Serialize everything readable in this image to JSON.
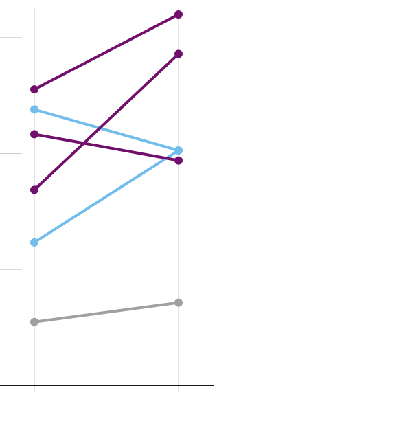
{
  "chart_data": {
    "type": "line",
    "chart_style": "slope",
    "categories": [
      "",
      ""
    ],
    "ylim": [
      0,
      5.7
    ],
    "y_gridlines": [
      1.5,
      3,
      4.5
    ],
    "grid": true,
    "legend": "none",
    "series": [
      {
        "color": "#720e6b",
        "values": [
          3.83,
          4.8
        ]
      },
      {
        "color": "#720e6b",
        "values": [
          2.53,
          4.29
        ]
      },
      {
        "color": "#720e6b",
        "values": [
          3.25,
          2.91
        ]
      },
      {
        "color": "#72bdeb",
        "values": [
          3.57,
          3.04
        ]
      },
      {
        "color": "#72bdeb",
        "values": [
          1.85,
          3.04
        ]
      },
      {
        "color": "#a0a0a0",
        "values": [
          0.82,
          1.07
        ]
      }
    ]
  }
}
